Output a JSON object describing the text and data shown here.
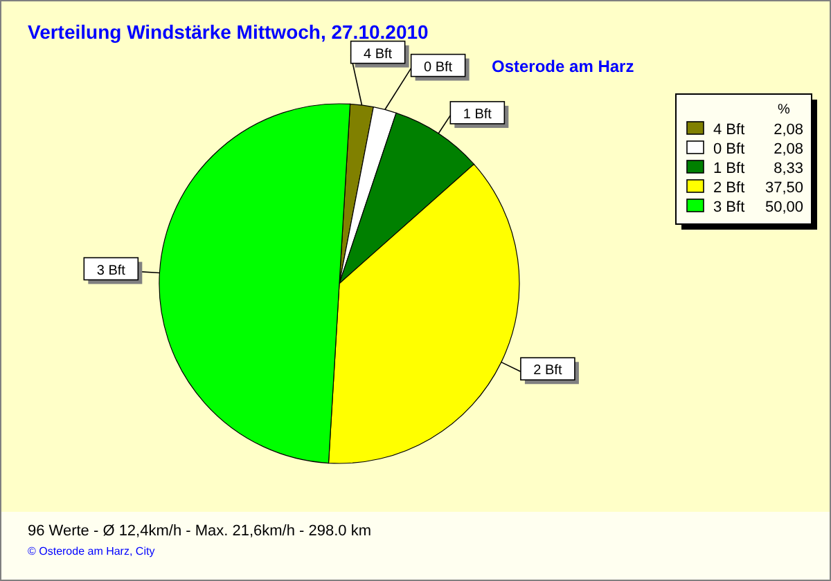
{
  "chart_data": {
    "type": "pie",
    "title": "Verteilung Windstärke  Mittwoch, 27.10.2010",
    "subtitle": "Osterode am Harz",
    "legend_title": "%",
    "categories": [
      "4 Bft",
      "0 Bft",
      "1 Bft",
      "2 Bft",
      "3 Bft"
    ],
    "values": [
      2.08,
      2.08,
      8.33,
      37.5,
      50.0
    ],
    "value_labels": [
      "2,08",
      "2,08",
      "8,33",
      "37,50",
      "50,00"
    ],
    "colors": [
      "#808000",
      "#ffffff",
      "#008000",
      "#ffff00",
      "#00ff00"
    ],
    "legend": "top right",
    "annotations": [
      "96 Werte   -   Ø 12,4km/h  -  Max. 21,6km/h  -   298.0 km",
      "© Osterode am Harz, City"
    ]
  }
}
